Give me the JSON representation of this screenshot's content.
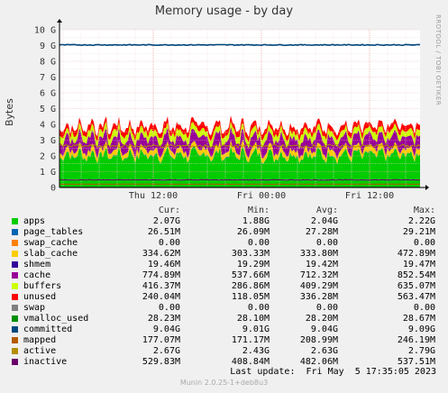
{
  "title": "Memory usage - by day",
  "watermark": "RRDTOOL / TOBI OETIKER",
  "ylabel": "Bytes",
  "legend_header": {
    "cur": "Cur:",
    "min": "Min:",
    "avg": "Avg:",
    "max": "Max:"
  },
  "legend": [
    {
      "name": "apps",
      "color": "#00cc00",
      "cur": "2.07G",
      "min": "1.88G",
      "avg": "2.04G",
      "max": "2.22G"
    },
    {
      "name": "page_tables",
      "color": "#0066b3",
      "cur": "26.51M",
      "min": "26.09M",
      "avg": "27.28M",
      "max": "29.21M"
    },
    {
      "name": "swap_cache",
      "color": "#ff8000",
      "cur": "0.00",
      "min": "0.00",
      "avg": "0.00",
      "max": "0.00"
    },
    {
      "name": "slab_cache",
      "color": "#ffcc00",
      "cur": "334.62M",
      "min": "303.33M",
      "avg": "333.80M",
      "max": "472.89M"
    },
    {
      "name": "shmem",
      "color": "#330099",
      "cur": "19.46M",
      "min": "19.29M",
      "avg": "19.42M",
      "max": "19.47M"
    },
    {
      "name": "cache",
      "color": "#990099",
      "cur": "774.89M",
      "min": "537.66M",
      "avg": "712.32M",
      "max": "852.54M"
    },
    {
      "name": "buffers",
      "color": "#ccff00",
      "cur": "416.37M",
      "min": "286.86M",
      "avg": "409.29M",
      "max": "635.07M"
    },
    {
      "name": "unused",
      "color": "#ff0000",
      "cur": "240.04M",
      "min": "118.05M",
      "avg": "336.28M",
      "max": "563.47M"
    },
    {
      "name": "swap",
      "color": "#808080",
      "cur": "0.00",
      "min": "0.00",
      "avg": "0.00",
      "max": "0.00"
    },
    {
      "name": "vmalloc_used",
      "color": "#008f00",
      "cur": "28.23M",
      "min": "28.10M",
      "avg": "28.20M",
      "max": "28.67M"
    },
    {
      "name": "committed",
      "color": "#00487d",
      "cur": "9.04G",
      "min": "9.01G",
      "avg": "9.04G",
      "max": "9.09G"
    },
    {
      "name": "mapped",
      "color": "#b35a00",
      "cur": "177.07M",
      "min": "171.17M",
      "avg": "208.99M",
      "max": "246.19M"
    },
    {
      "name": "active",
      "color": "#b38f00",
      "cur": "2.67G",
      "min": "2.43G",
      "avg": "2.63G",
      "max": "2.79G"
    },
    {
      "name": "inactive",
      "color": "#6b006b",
      "cur": "529.83M",
      "min": "408.84M",
      "avg": "482.06M",
      "max": "537.51M"
    }
  ],
  "last_update": "Last update:  Fri May  5 17:35:05 2023",
  "footer": "Munin 2.0.25-1+deb8u3",
  "chart_data": {
    "type": "area",
    "title": "Memory usage - by day",
    "ylabel": "Bytes",
    "y_ticks": [
      "0",
      "1 G",
      "2 G",
      "3 G",
      "4 G",
      "5 G",
      "6 G",
      "7 G",
      "8 G",
      "9 G",
      "10 G"
    ],
    "ylim": [
      0,
      10
    ],
    "y_unit": "GB",
    "x_ticks": [
      "Thu 12:00",
      "Fri 00:00",
      "Fri 12:00"
    ],
    "x_tick_hours": [
      12,
      24,
      36
    ],
    "x_range_hours": [
      1.6,
      41.6
    ],
    "grid": true,
    "stack_order": [
      "apps",
      "page_tables",
      "swap_cache",
      "slab_cache",
      "shmem",
      "cache",
      "buffers",
      "unused",
      "swap"
    ],
    "stacked_avg_gb": {
      "apps": 2.04,
      "page_tables": 0.027,
      "swap_cache": 0.0,
      "slab_cache": 0.334,
      "shmem": 0.019,
      "cache": 0.712,
      "buffers": 0.409,
      "unused": 0.336,
      "swap": 0.0
    },
    "lines_avg_gb": {
      "vmalloc_used": 0.028,
      "committed": 9.04,
      "mapped": 0.209,
      "active": 2.63,
      "inactive": 0.482
    },
    "total_gb": 3.89
  }
}
